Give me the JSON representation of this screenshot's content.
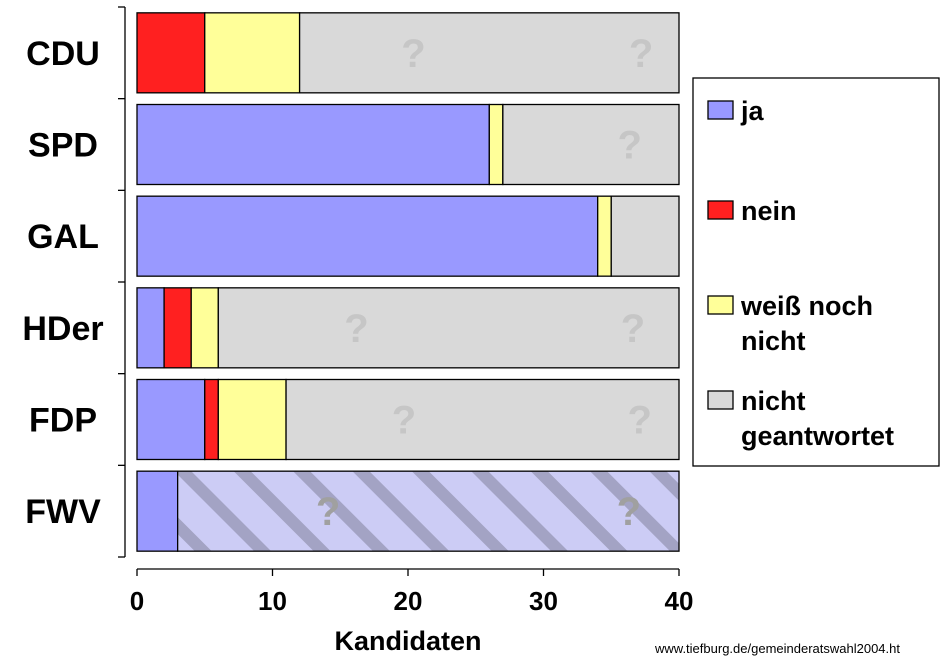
{
  "chart_data": {
    "type": "bar",
    "orientation": "horizontal",
    "stacked": true,
    "categories": [
      "CDU",
      "SPD",
      "GAL",
      "HDer",
      "FDP",
      "FWV"
    ],
    "series": [
      {
        "name": "ja",
        "values": [
          0,
          26,
          34,
          2,
          5,
          3
        ]
      },
      {
        "name": "nein",
        "values": [
          5,
          0,
          0,
          2,
          1,
          0
        ]
      },
      {
        "name": "weiß noch nicht",
        "values": [
          7,
          1,
          1,
          2,
          5,
          0
        ]
      },
      {
        "name": "nicht geantwortet",
        "values": [
          28,
          13,
          5,
          34,
          29,
          37
        ]
      }
    ],
    "colors": {
      "ja": "#9999ff",
      "nein": "#ff2020",
      "weiß noch nicht": "#ffff99",
      "nicht geantwortet": "#d9d9d9"
    },
    "hatched_category": "FWV",
    "xlabel": "Kandidaten",
    "xlim": [
      0,
      40
    ],
    "xticks": [
      "0",
      "10",
      "20",
      "30",
      "40"
    ],
    "question_mark": "?",
    "question_marks_per_row": [
      2,
      1,
      0,
      2,
      2,
      2
    ],
    "legend": {
      "position": "right",
      "entries": [
        {
          "lines": [
            "ja"
          ]
        },
        {
          "lines": [
            "nein"
          ]
        },
        {
          "lines": [
            "weiß noch",
            "nicht"
          ]
        },
        {
          "lines": [
            "nicht",
            "geantwortet"
          ]
        }
      ]
    },
    "grid": false
  },
  "footer": "www.tiefburg.de/gemeinderatswahl2004.ht"
}
